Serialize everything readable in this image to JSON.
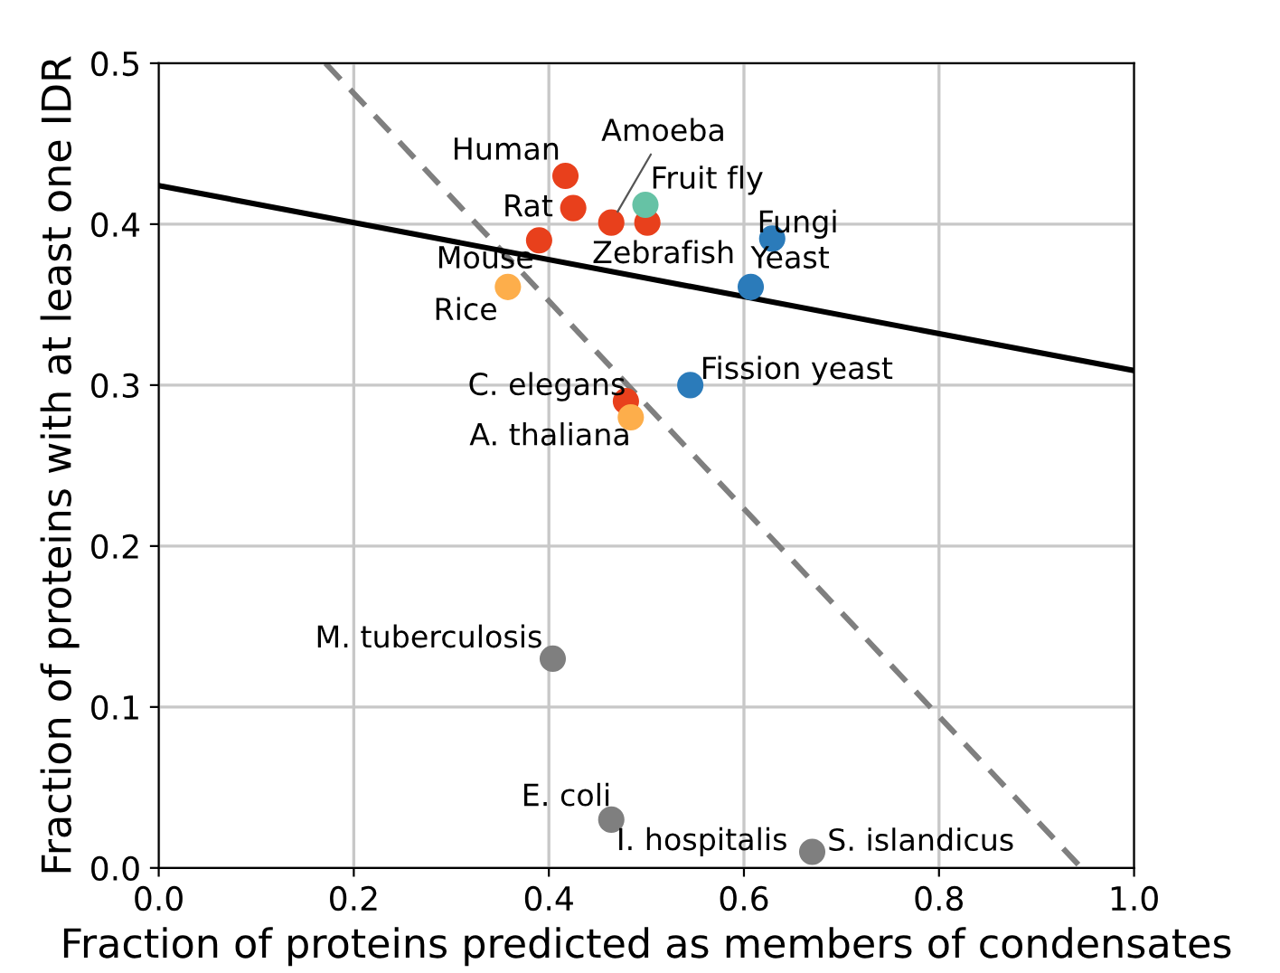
{
  "chart_data": {
    "type": "scatter",
    "xlabel": "Fraction of proteins predicted as members of condensates",
    "ylabel": "Fraction of proteins with at least one IDR",
    "xlim": [
      0,
      1
    ],
    "ylim": [
      0,
      0.5
    ],
    "xticks": [
      {
        "value": 0,
        "label": "0.0"
      },
      0.2,
      0.4,
      0.6,
      0.8,
      {
        "value": 1,
        "label": "1.0"
      }
    ],
    "yticks": [
      {
        "value": 0,
        "label": "0.0"
      },
      0.1,
      0.2,
      0.3,
      0.4,
      0.5
    ],
    "grid": true,
    "marker": "circle",
    "series": [
      {
        "type": "line",
        "color": "#7f7f7f",
        "line_style": "dashed",
        "marker": "none",
        "x": [
          0.171,
          0.946
        ],
        "values": [
          0.5,
          0
        ]
      },
      {
        "type": "line",
        "color": "#000000",
        "line_style": "solid",
        "marker": "none",
        "x": [
          0,
          1
        ],
        "values": [
          0.424,
          0.309
        ]
      },
      {
        "color": "#e8401c",
        "x": [
          0.417,
          0.425,
          0.39,
          0.464,
          0.501,
          0.479
        ],
        "values": [
          0.43,
          0.41,
          0.39,
          0.401,
          0.401,
          0.29
        ]
      },
      {
        "color": "#66c2a5",
        "x": [
          0.499
        ],
        "values": [
          0.412
        ]
      },
      {
        "color": "#2b7bba",
        "x": [
          0.629,
          0.607,
          0.545
        ],
        "values": [
          0.391,
          0.361,
          0.3
        ]
      },
      {
        "color": "#fdae4b",
        "x": [
          0.358,
          0.484
        ],
        "values": [
          0.361,
          0.28
        ]
      },
      {
        "color": "#7f7f7f",
        "x": [
          0.404,
          0.464,
          0.67
        ],
        "values": [
          0.13,
          0.03,
          0.01
        ]
      }
    ],
    "annotations": [
      {
        "text": "Human",
        "x": 0.417,
        "y": 0.43
      },
      {
        "text": "Amoeba",
        "x": 0.464,
        "y": 0.401
      },
      {
        "text": "Rat",
        "x": 0.425,
        "y": 0.41
      },
      {
        "text": "Mouse",
        "x": 0.39,
        "y": 0.39
      },
      {
        "text": "Zebrafish",
        "x": 0.501,
        "y": 0.401
      },
      {
        "text": "Fruit fly",
        "x": 0.499,
        "y": 0.412
      },
      {
        "text": "Fungi",
        "x": 0.629,
        "y": 0.391
      },
      {
        "text": "Yeast",
        "x": 0.607,
        "y": 0.361
      },
      {
        "text": "Rice",
        "x": 0.358,
        "y": 0.361
      },
      {
        "text": "Fission yeast",
        "x": 0.545,
        "y": 0.3
      },
      {
        "text": "C. elegans",
        "x": 0.479,
        "y": 0.29
      },
      {
        "text": "A. thaliana",
        "x": 0.484,
        "y": 0.28
      },
      {
        "text": "M. tuberculosis",
        "x": 0.404,
        "y": 0.13
      },
      {
        "text": "E. coli",
        "x": 0.464,
        "y": 0.03
      },
      {
        "text": "I. hospitalis",
        "x": 0.464,
        "y": 0.03
      },
      {
        "text": "S. islandicus",
        "x": 0.67,
        "y": 0.01
      }
    ]
  }
}
